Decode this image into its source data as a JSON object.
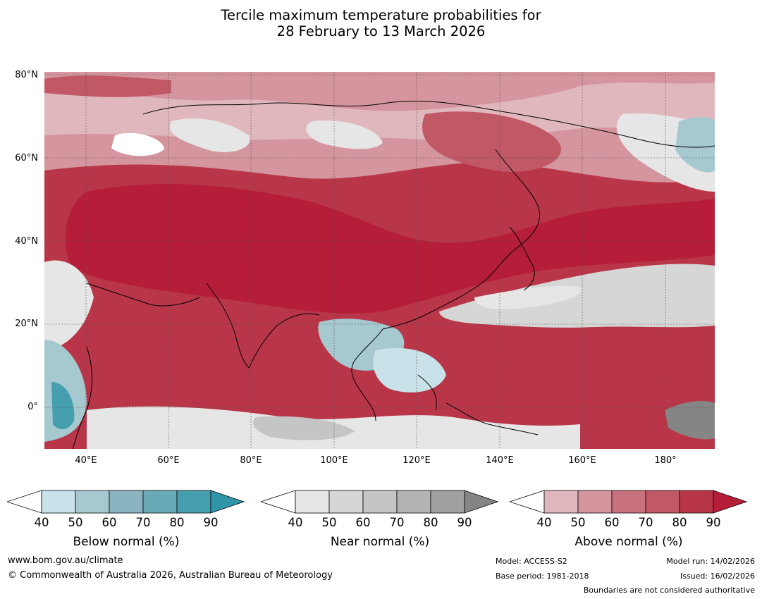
{
  "title": {
    "line1": "Tercile maximum temperature probabilities for",
    "line2": "28 February to 13 March 2026"
  },
  "map": {
    "lat_labels": [
      "80°N",
      "60°N",
      "40°N",
      "20°N",
      "0°"
    ],
    "lon_labels": [
      "40°E",
      "60°E",
      "80°E",
      "100°E",
      "120°E",
      "140°E",
      "160°E",
      "180°"
    ],
    "extent": {
      "lon_min": 30,
      "lon_max": 192,
      "lat_min": -10,
      "lat_max": 81
    }
  },
  "colorbars": [
    {
      "name": "below",
      "label": "Below normal (%)",
      "ticks": [
        "40",
        "50",
        "60",
        "70",
        "80",
        "90"
      ],
      "colors": [
        "#c9e2e9",
        "#a6c8cf",
        "#8ab5c0",
        "#6aaab6",
        "#459fae",
        "#2e94a6"
      ]
    },
    {
      "name": "near",
      "label": "Near normal (%)",
      "ticks": [
        "40",
        "50",
        "60",
        "70",
        "80",
        "90"
      ],
      "colors": [
        "#e6e6e6",
        "#d6d6d6",
        "#c5c5c5",
        "#b3b3b3",
        "#a0a0a0",
        "#858585"
      ]
    },
    {
      "name": "above",
      "label": "Above normal (%)",
      "ticks": [
        "40",
        "50",
        "60",
        "70",
        "80",
        "90"
      ],
      "colors": [
        "#e0b7bd",
        "#d5959e",
        "#c9727f",
        "#c05865",
        "#b83648",
        "#b51d38"
      ]
    }
  ],
  "footer": {
    "website": "www.bom.gov.au/climate",
    "copyright": "© Commonwealth of Australia 2026, Australian Bureau of Meteorology",
    "model": "Model: ACCESS-S2",
    "base_period": "Base period: 1981-2018",
    "model_run": "Model run: 14/02/2026",
    "issued": "Issued: 16/02/2026",
    "disclaimer": "Boundaries are not considered authoritative"
  }
}
